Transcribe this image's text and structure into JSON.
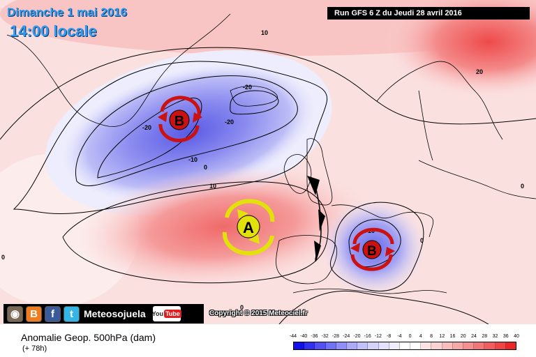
{
  "header": {
    "date": "Dimanche 1 mai 2016",
    "time": "14:00 locale",
    "run": "Run GFS 6 Z du Jeudi 28 avril 2016"
  },
  "map": {
    "contours": {
      "c10_north": "10",
      "c20_ne": "20",
      "n20_top": "-20",
      "n20_mid": "-20",
      "n20_left": "-20",
      "n10_left": "-10",
      "c0_left": "0",
      "c10_mid": "10",
      "n10_med": "-10",
      "c0_med": "0",
      "c0_right": "0",
      "c0_bottom": "0",
      "c0_far": "0"
    },
    "pressure_systems": [
      {
        "type": "low",
        "letter": "B",
        "color": "#cc1111"
      },
      {
        "type": "high",
        "letter": "A",
        "color": "#e2e20a"
      },
      {
        "type": "low",
        "letter": "B",
        "color": "#cc1111"
      }
    ]
  },
  "branding": {
    "site": "Meteosojuela",
    "icons": [
      "instagram-icon",
      "blogger-icon",
      "facebook-icon",
      "twitter-icon",
      "youtube-icon"
    ],
    "youtube_you": "You",
    "youtube_tube": "Tube",
    "instagram_glyph": "◉",
    "blogger_glyph": "B",
    "facebook_glyph": "f",
    "twitter_glyph": "t"
  },
  "copyright": "Copyright © 2015 Meteociel.fr",
  "legend": {
    "title": "Anomalie Geop. 500hPa (dam)",
    "subtitle": "(+ 78h)",
    "scale_values": [
      "-44",
      "-40",
      "-36",
      "-32",
      "-28",
      "-24",
      "-20",
      "-16",
      "-12",
      "-8",
      "-4",
      "0",
      "4",
      "8",
      "12",
      "16",
      "20",
      "24",
      "28",
      "32",
      "36",
      "40"
    ],
    "scale_colors": [
      "#1010e8",
      "#3030ee",
      "#5252f2",
      "#7272f4",
      "#9090f6",
      "#aaaaf8",
      "#c0c0fa",
      "#d4d4fb",
      "#e2e2fc",
      "#efeffd",
      "#ffffff",
      "#ffffff",
      "#fde4e4",
      "#fbd2d2",
      "#f8bcbc",
      "#f6a8a8",
      "#f49090",
      "#f27878",
      "#f05e5e",
      "#ee4444",
      "#ec2626"
    ]
  }
}
